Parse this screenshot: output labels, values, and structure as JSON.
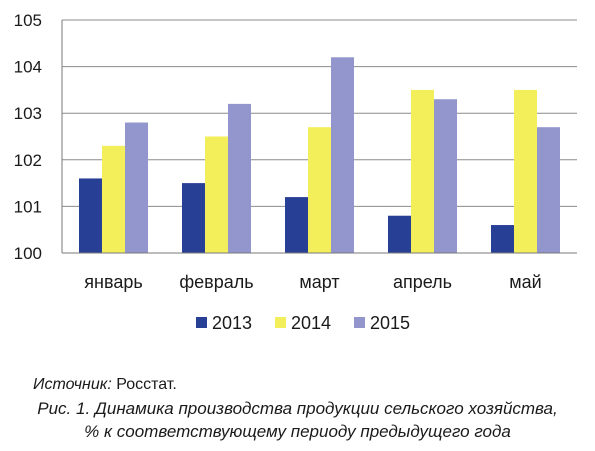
{
  "chart_data": {
    "type": "bar",
    "categories": [
      "январь",
      "февраль",
      "март",
      "апрель",
      "май"
    ],
    "series": [
      {
        "name": "2013",
        "values": [
          101.6,
          101.5,
          101.2,
          100.8,
          100.6
        ]
      },
      {
        "name": "2014",
        "values": [
          102.3,
          102.5,
          102.7,
          103.5,
          103.5
        ]
      },
      {
        "name": "2015",
        "values": [
          102.8,
          103.2,
          104.2,
          103.3,
          102.7
        ]
      }
    ],
    "colors": [
      "#283f96",
      "#f2ef5a",
      "#9296cc"
    ],
    "ylim": [
      100,
      105
    ],
    "yticks": [
      "100",
      "101",
      "102",
      "103",
      "104",
      "105"
    ],
    "grid": true,
    "legend": "bottom"
  },
  "source_label": "Источник:",
  "source_value": "Росстат.",
  "caption_line1": "Рис. 1. Динамика производства продукции сельского хозяйства,",
  "caption_line2": "% к соответствующему периоду предыдущего года"
}
